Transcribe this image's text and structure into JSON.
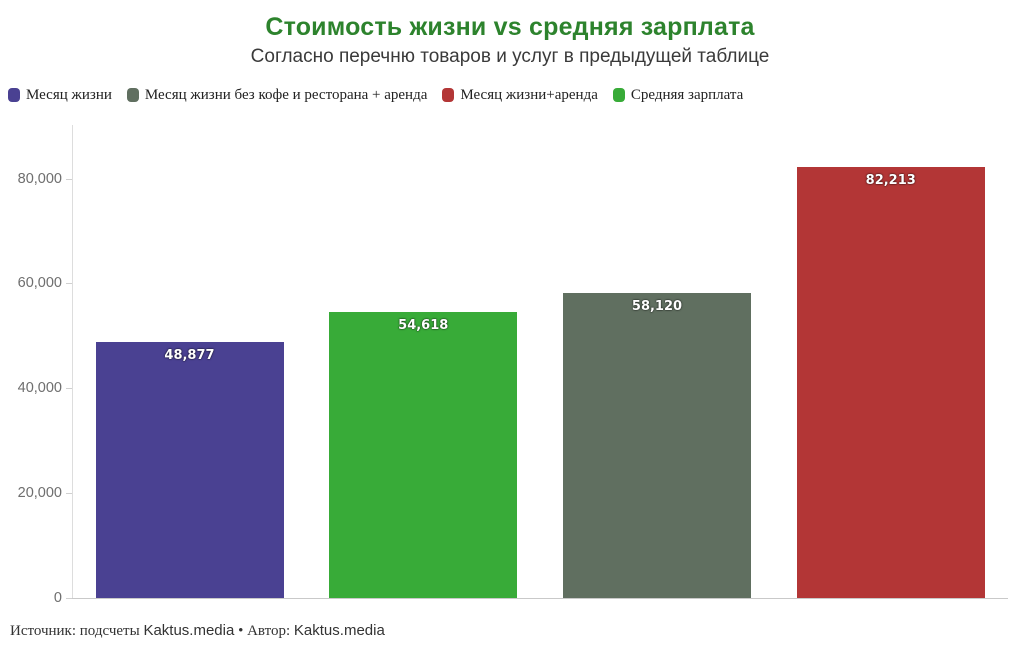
{
  "header": {
    "title": "Стоимость жизни vs средняя зарплата",
    "subtitle": "Согласно перечню товаров и услуг в предыдущей таблице",
    "title_color": "#2d832d"
  },
  "legend": {
    "items": [
      {
        "label": "Месяц жизни",
        "color": "#4a4192"
      },
      {
        "label": "Месяц жизни без кофе и ресторана + аренда",
        "color": "#606f60"
      },
      {
        "label": "Месяц жизни+аренда",
        "color": "#b33636"
      },
      {
        "label": "Средняя зарплата",
        "color": "#38ab38"
      }
    ]
  },
  "chart_data": {
    "type": "bar",
    "title": "Стоимость жизни vs средняя зарплата",
    "subtitle": "Согласно перечню товаров и услуг в предыдущей таблице",
    "categories": [
      "Месяц жизни",
      "Средняя зарплата",
      "Месяц жизни без кофе и ресторана + аренда",
      "Месяц жизни+аренда"
    ],
    "values": [
      48877,
      54618,
      58120,
      82213
    ],
    "value_labels": [
      "48,877",
      "54,618",
      "58,120",
      "82,213"
    ],
    "colors": [
      "#4a4192",
      "#38ab38",
      "#606f60",
      "#b33636"
    ],
    "xlabel": "",
    "ylabel": "",
    "ylim": [
      0,
      84000
    ],
    "y_ticks": [
      {
        "value": 0,
        "label": "0"
      },
      {
        "value": 20000,
        "label": "20,000"
      },
      {
        "value": 40000,
        "label": "40,000"
      },
      {
        "value": 60000,
        "label": "60,000"
      },
      {
        "value": 80000,
        "label": "80,000"
      }
    ],
    "grid": "off",
    "legend_position": "top-left",
    "bar_label_position": "inside-top",
    "axis_color": "#dddddd",
    "tick_label_color": "#6e6e6e"
  },
  "footer": {
    "parts": [
      {
        "text": "Источник: подсчеты "
      },
      {
        "text": "Kaktus.media"
      },
      {
        "text": " • "
      },
      {
        "text": "Автор: "
      },
      {
        "text": "Kaktus.media"
      }
    ]
  }
}
